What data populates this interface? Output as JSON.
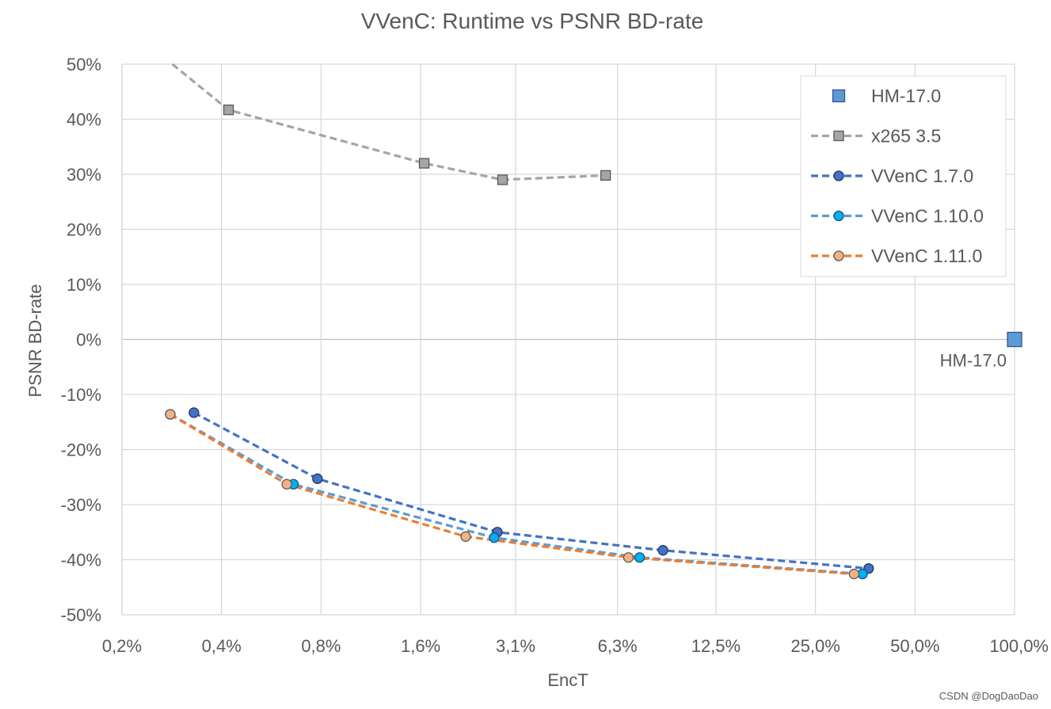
{
  "chart_data": {
    "type": "line",
    "title": "VVenC: Runtime vs PSNR BD-rate",
    "xlabel": "EncT",
    "ylabel": "PSNR BD-rate",
    "x_scale": "log2",
    "xlim": [
      0.002,
      1.0
    ],
    "ylim": [
      -50,
      50
    ],
    "x_ticks": [
      {
        "value": 0.002,
        "label": "0,2%"
      },
      {
        "value": 0.004,
        "label": "0,4%"
      },
      {
        "value": 0.008,
        "label": "0,8%"
      },
      {
        "value": 0.016,
        "label": "1,6%"
      },
      {
        "value": 0.031,
        "label": "3,1%"
      },
      {
        "value": 0.063,
        "label": "6,3%"
      },
      {
        "value": 0.125,
        "label": "12,5%"
      },
      {
        "value": 0.25,
        "label": "25,0%"
      },
      {
        "value": 0.5,
        "label": "50,0%"
      },
      {
        "value": 1.0,
        "label": "100,0%"
      }
    ],
    "y_ticks": [
      {
        "value": 50,
        "label": "50%"
      },
      {
        "value": 40,
        "label": "40%"
      },
      {
        "value": 30,
        "label": "30%"
      },
      {
        "value": 20,
        "label": "20%"
      },
      {
        "value": 10,
        "label": "10%"
      },
      {
        "value": 0,
        "label": "0%"
      },
      {
        "value": -10,
        "label": "-10%"
      },
      {
        "value": -20,
        "label": "-20%"
      },
      {
        "value": -30,
        "label": "-30%"
      },
      {
        "value": -40,
        "label": "-40%"
      },
      {
        "value": -50,
        "label": "-50%"
      }
    ],
    "grid": true,
    "legend_position": "top-right",
    "series": [
      {
        "name": "HM-17.0",
        "marker": "square",
        "line": "none",
        "color": "#5B9BD5",
        "edge": "#2F5597",
        "points": [
          {
            "x": 1.0,
            "y": 0
          }
        ],
        "data_label": "HM-17.0"
      },
      {
        "name": "x265 3.5",
        "marker": "square",
        "line": "dashed",
        "color": "#A5A5A5",
        "edge": "#595959",
        "points": [
          {
            "x": 0.00284,
            "y": 50
          },
          {
            "x": 0.0042,
            "y": 41.7
          },
          {
            "x": 0.0164,
            "y": 32
          },
          {
            "x": 0.0283,
            "y": 29
          },
          {
            "x": 0.058,
            "y": 29.8
          }
        ]
      },
      {
        "name": "VVenC 1.7.0",
        "marker": "circle",
        "line": "dashed",
        "color": "#4472C4",
        "edge": "#203864",
        "points": [
          {
            "x": 0.0033,
            "y": -13.3
          },
          {
            "x": 0.0078,
            "y": -25.3
          },
          {
            "x": 0.0273,
            "y": -35
          },
          {
            "x": 0.0865,
            "y": -38.3
          },
          {
            "x": 0.362,
            "y": -41.6
          }
        ]
      },
      {
        "name": "VVenC 1.10.0",
        "marker": "circle",
        "line": "dashed",
        "color": "#00B0F0",
        "edge": "#1F4E79",
        "points": [
          {
            "x": 0.0028,
            "y": -13.6
          },
          {
            "x": 0.0066,
            "y": -26.3
          },
          {
            "x": 0.0267,
            "y": -36
          },
          {
            "x": 0.0735,
            "y": -39.6
          },
          {
            "x": 0.347,
            "y": -42.6
          }
        ],
        "line_color": "#5B9BD5"
      },
      {
        "name": "VVenC 1.11.0",
        "marker": "circle",
        "line": "dashed",
        "color": "#F4B183",
        "edge": "#595959",
        "points": [
          {
            "x": 0.0028,
            "y": -13.6
          },
          {
            "x": 0.0063,
            "y": -26.3
          },
          {
            "x": 0.0219,
            "y": -35.8
          },
          {
            "x": 0.068,
            "y": -39.6
          },
          {
            "x": 0.327,
            "y": -42.6
          }
        ],
        "line_color": "#ED7D31"
      }
    ]
  },
  "watermark": "CSDN @DogDaoDao"
}
